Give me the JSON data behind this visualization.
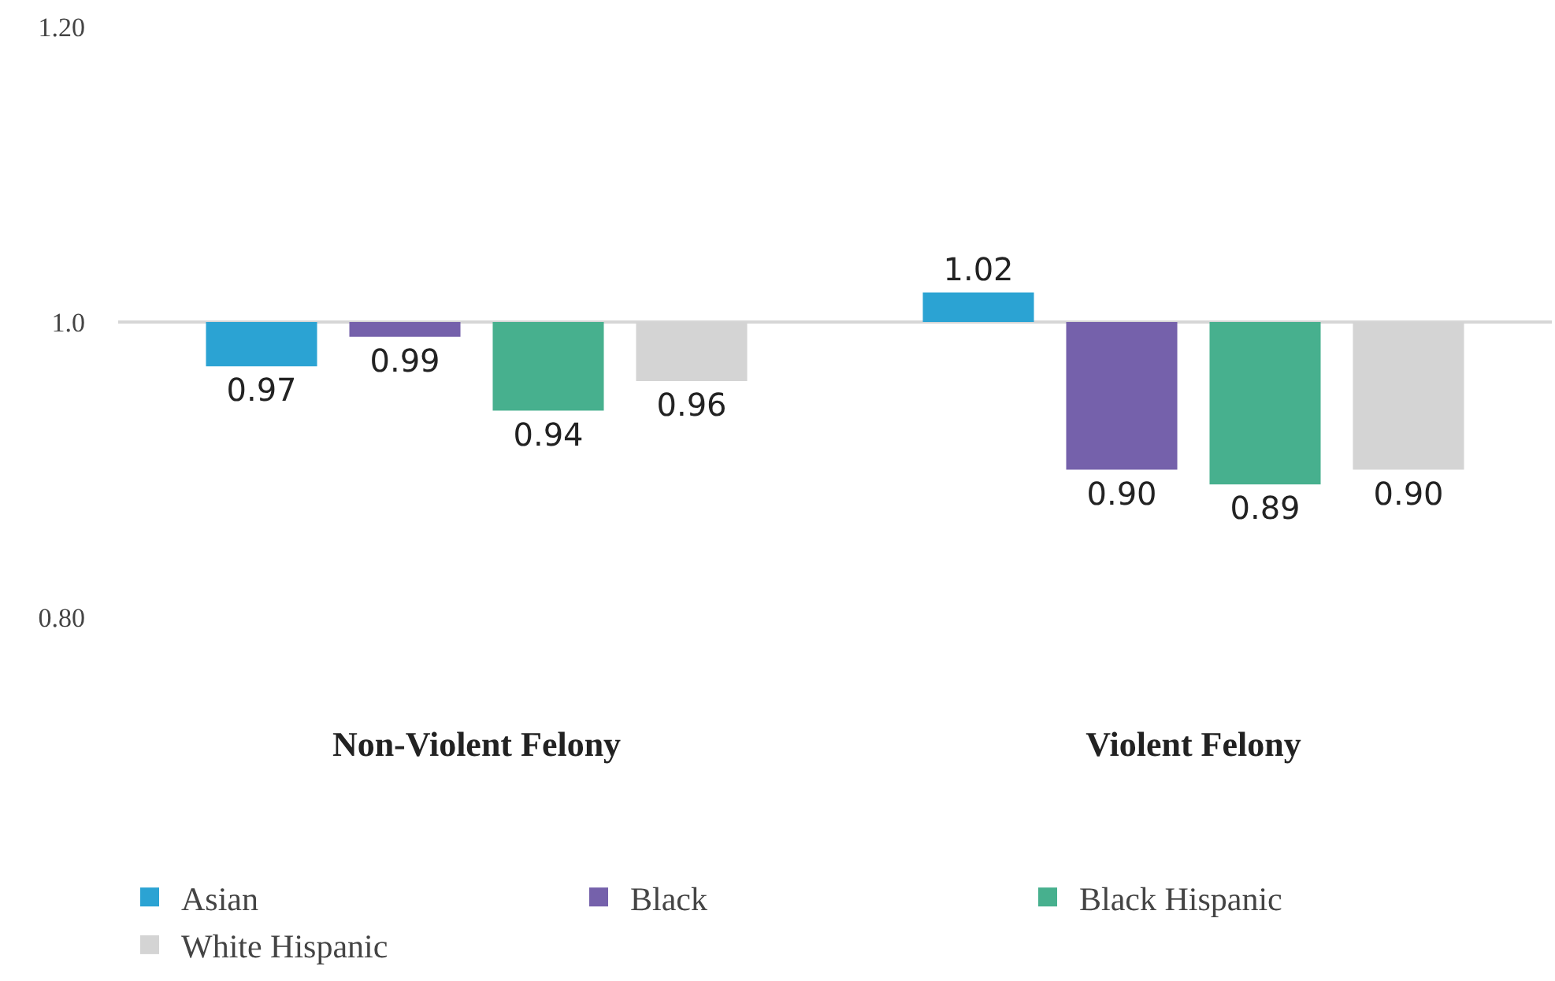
{
  "chart_data": {
    "type": "bar",
    "categories": [
      "Non-Violent Felony",
      "Violent Felony"
    ],
    "series": [
      {
        "name": "Asian",
        "color": "#2ba3d3",
        "base": [
          1.0,
          1.0
        ],
        "values": [
          -0.03,
          0.02
        ],
        "value_labels": [
          "0.97",
          "1.02"
        ]
      },
      {
        "name": "Black",
        "color": "#7561ab",
        "base": [
          1.0,
          1.0
        ],
        "values": [
          -0.01,
          -0.1
        ],
        "value_labels": [
          "0.99",
          "0.90"
        ]
      },
      {
        "name": "Black Hispanic",
        "color": "#47b08e",
        "base": [
          1.0,
          1.0
        ],
        "values": [
          -0.06,
          -0.11
        ],
        "value_labels": [
          "0.94",
          "0.89"
        ]
      },
      {
        "name": "White Hispanic",
        "color": "#d4d4d4",
        "base": [
          1.0,
          1.0
        ],
        "values": [
          -0.04,
          -0.1
        ],
        "value_labels": [
          "0.96",
          "0.90"
        ]
      }
    ],
    "ylim": [
      0.8,
      1.2
    ],
    "yticks": [
      {
        "value": 0.8,
        "label": "0.80"
      },
      {
        "value": 1.0,
        "label": "1.0"
      },
      {
        "value": 1.2,
        "label": "1.20"
      }
    ],
    "grid": "y",
    "legend": "bottom"
  }
}
